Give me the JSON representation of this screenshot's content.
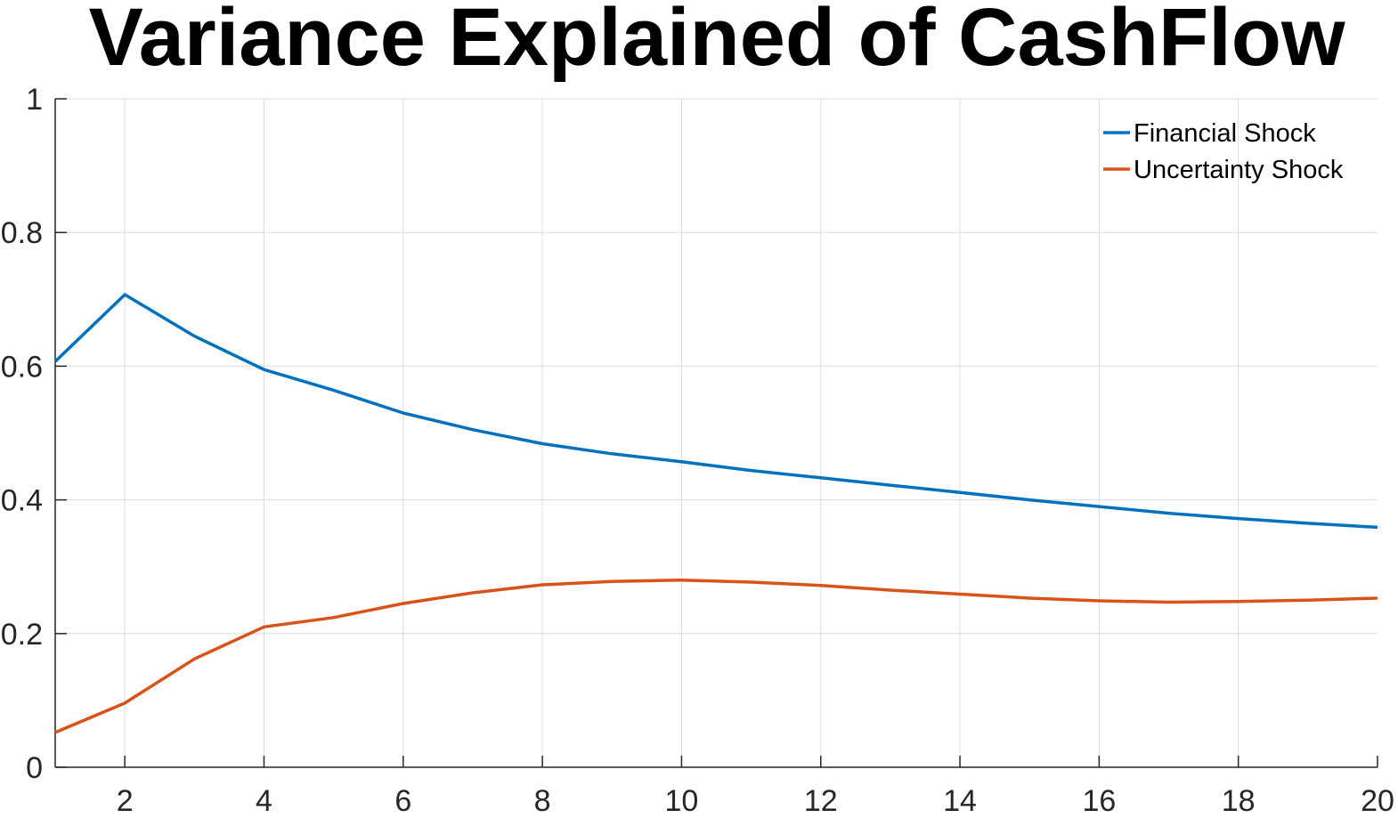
{
  "chart_data": {
    "type": "line",
    "title": "Variance Explained of CashFlow",
    "xlabel": "",
    "ylabel": "",
    "xlim": [
      1,
      20
    ],
    "ylim": [
      0,
      1
    ],
    "xticks": [
      2,
      4,
      6,
      8,
      10,
      12,
      14,
      16,
      18,
      20
    ],
    "yticks": [
      0,
      0.2,
      0.4,
      0.6,
      0.8,
      1
    ],
    "ytick_labels": [
      "0",
      "0.2",
      "0.4",
      "0.6",
      "0.8",
      "1"
    ],
    "grid": true,
    "legend_position": "top-right",
    "x": [
      1,
      2,
      3,
      4,
      5,
      6,
      7,
      8,
      9,
      10,
      11,
      12,
      13,
      14,
      15,
      16,
      17,
      18,
      19,
      20
    ],
    "series": [
      {
        "name": "Financial Shock",
        "color": "#0072BD",
        "values": [
          0.607,
          0.707,
          0.645,
          0.595,
          0.564,
          0.53,
          0.505,
          0.484,
          0.469,
          0.457,
          0.444,
          0.433,
          0.422,
          0.411,
          0.4,
          0.39,
          0.38,
          0.372,
          0.365,
          0.359
        ]
      },
      {
        "name": "Uncertainty Shock",
        "color": "#D95319",
        "values": [
          0.052,
          0.096,
          0.162,
          0.21,
          0.224,
          0.245,
          0.261,
          0.273,
          0.278,
          0.28,
          0.277,
          0.272,
          0.265,
          0.259,
          0.253,
          0.249,
          0.247,
          0.248,
          0.25,
          0.253
        ]
      }
    ]
  }
}
